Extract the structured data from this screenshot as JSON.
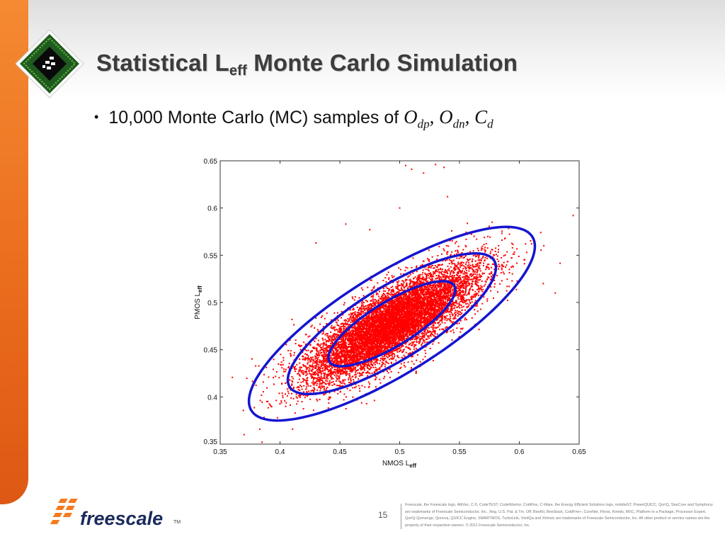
{
  "slide": {
    "title_main": "Statistical L",
    "title_sub": "eff",
    "title_rest": " Monte Carlo Simulation",
    "bullet_text": "10,000 Monte Carlo (MC) samples of ",
    "bullet_math": [
      {
        "base": "O",
        "sub": "dp",
        "sep": ", "
      },
      {
        "base": "O",
        "sub": "dn",
        "sep": ", "
      },
      {
        "base": "C",
        "sub": "d",
        "sep": ""
      }
    ],
    "page_number": "15",
    "brand": "freescale",
    "trademark": "TM",
    "legal": "Freescale, the Freescale logo, AltiVec, C-5, CodeTEST, CodeWarrior, ColdFire, C-Ware, the Energy Efficient Solutions logo, mobileGT, PowerQUICC, QorIQ, StarCore and Symphony are trademarks of Freescale Semiconductor, Inc., Reg. U.S. Pat. & Tm. Off. BeeKit, BeeStack, ColdFire+, CoreNet, Flexis, Kinetis, MXC, Platform in a Package, Processor Expert, QorIQ Qonverge, Qorivva, QUICC Engine, SMARTMOS, TurboLink, VortiQa and Xtrinsic are trademarks of Freescale Semiconductor, Inc. All other product or service names are the property of their respective owners. © 2011 Freescale Semiconductor, Inc.",
    "colors": {
      "sidebar": "#e96a1c",
      "title": "#3c3c3c",
      "brand_orange": "#f47b20",
      "brand_navy": "#1a2a5c"
    }
  },
  "chart_data": {
    "type": "scatter",
    "title": "",
    "xlabel": "NMOS L",
    "xlabel_sub": "eff",
    "ylabel": "PMOS L",
    "ylabel_sub": "eff",
    "xlim": [
      0.35,
      0.65
    ],
    "ylim": [
      0.35,
      0.65
    ],
    "xticks": [
      "0.35",
      "0.4",
      "0.45",
      "0.5",
      "0.55",
      "0.6",
      "0.65"
    ],
    "yticks": [
      "0.35",
      "0.4",
      "0.45",
      "0.5",
      "0.55",
      "0.6",
      "0.65"
    ],
    "grid": false,
    "sample_count": 10000,
    "point_color": "#ff0000",
    "distribution": {
      "mean": [
        0.4935,
        0.4775
      ],
      "std": [
        0.036,
        0.031
      ],
      "correlation": 0.8
    },
    "outliers": [
      [
        0.505,
        0.645
      ],
      [
        0.51,
        0.641
      ],
      [
        0.52,
        0.637
      ],
      [
        0.53,
        0.646
      ],
      [
        0.537,
        0.643
      ],
      [
        0.5,
        0.6
      ],
      [
        0.54,
        0.612
      ],
      [
        0.645,
        0.592
      ],
      [
        0.43,
        0.563
      ],
      [
        0.455,
        0.583
      ],
      [
        0.475,
        0.577
      ],
      [
        0.37,
        0.36
      ],
      [
        0.385,
        0.352
      ],
      [
        0.41,
        0.482
      ],
      [
        0.62,
        0.52
      ],
      [
        0.63,
        0.51
      ]
    ],
    "ellipse_color": "#1515d0",
    "ellipses": [
      {
        "center": [
          0.4935,
          0.4775
        ],
        "x_halfwidth": 0.053,
        "y_halfheight": 0.045,
        "correlation": 0.8
      },
      {
        "center": [
          0.4935,
          0.4775
        ],
        "x_halfwidth": 0.087,
        "y_halfheight": 0.0745,
        "correlation": 0.8
      },
      {
        "center": [
          0.4935,
          0.4775
        ],
        "x_halfwidth": 0.1195,
        "y_halfheight": 0.1025,
        "correlation": 0.8
      }
    ]
  }
}
